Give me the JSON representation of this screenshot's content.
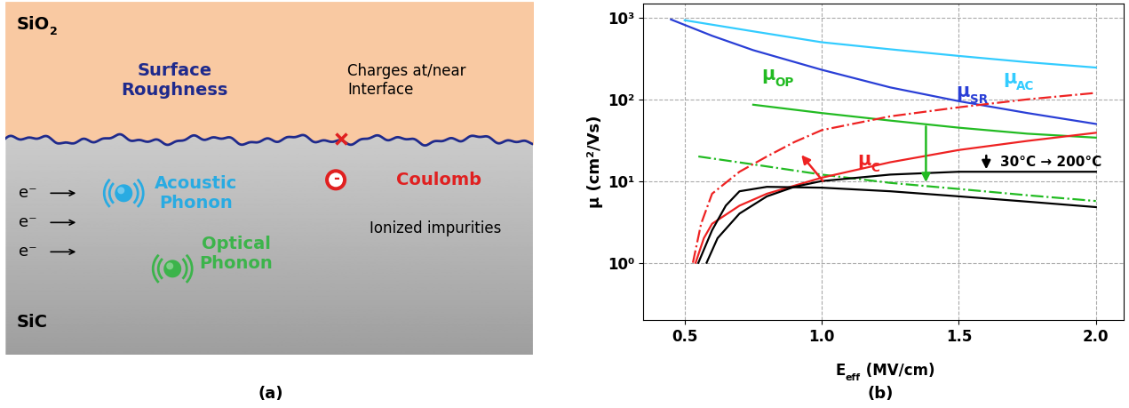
{
  "panel_labels": [
    "(a)",
    "(b)"
  ],
  "diagram": {
    "oxide_label": {
      "text": "SiO",
      "sub": "2"
    },
    "substrate_label": "SiC",
    "roughness_label": {
      "text": "Surface\nRoughness",
      "color": "#1f2a8c"
    },
    "charges_label": "Charges at/near\nInterface",
    "coulomb_label": {
      "text": "Coulomb",
      "color": "#e02020"
    },
    "impurities_label": "Ionized impurities",
    "acoustic_label": {
      "text": "Acoustic\nPhonon",
      "color": "#29abe2"
    },
    "optical_label": {
      "text": "Optical\nPhonon",
      "color": "#3cb44b"
    },
    "electrons": [
      "e⁻",
      "e⁻",
      "e⁻"
    ],
    "ion_symbol": "-"
  },
  "chart_data": {
    "type": "line",
    "xlabel": {
      "text": "E",
      "sub": "eff",
      "rest": " (MV/cm)"
    },
    "ylabel": "μ (cm²/Vs)",
    "log": "y",
    "grid": true,
    "xlim": [
      0.35,
      2.1
    ],
    "xticks": [
      0.5,
      1.0,
      1.5,
      2.0
    ],
    "ylim": [
      0.2,
      1500
    ],
    "yticks": [
      {
        "value": 1,
        "label": "10⁰"
      },
      {
        "value": 10,
        "label": "10¹"
      },
      {
        "value": 100,
        "label": "10²"
      },
      {
        "value": 1000,
        "label": "10³"
      }
    ],
    "series": [
      {
        "color": "#33ccff",
        "line_style": "solid",
        "x": [
          0.5,
          0.75,
          1.0,
          1.25,
          1.5,
          1.75,
          2.0
        ],
        "values": [
          930,
          680,
          500,
          410,
          340,
          285,
          245
        ]
      },
      {
        "color": "#2a3fd6",
        "line_style": "solid",
        "x": [
          0.45,
          0.6,
          0.75,
          1.0,
          1.25,
          1.5,
          1.75,
          2.0
        ],
        "values": [
          950,
          600,
          400,
          230,
          140,
          95,
          68,
          50
        ]
      },
      {
        "color": "#22bb22",
        "line_style": "solid",
        "x": [
          0.75,
          1.0,
          1.25,
          1.5,
          1.75,
          2.0
        ],
        "values": [
          86,
          68,
          55,
          45,
          38,
          34
        ]
      },
      {
        "color": "#22bb22",
        "line_style": "dashdot",
        "x": [
          0.55,
          0.75,
          1.0,
          1.25,
          1.5,
          1.75,
          2.0
        ],
        "values": [
          20,
          16,
          12,
          9.5,
          8,
          6.7,
          5.7
        ]
      },
      {
        "color": "#ee2222",
        "line_style": "solid",
        "x": [
          0.54,
          0.57,
          0.6,
          0.7,
          0.8,
          1.0,
          1.25,
          1.5,
          1.75,
          2.0
        ],
        "values": [
          1,
          2,
          3,
          5,
          7,
          11,
          17,
          24,
          31,
          39
        ]
      },
      {
        "color": "#ee2222",
        "line_style": "dashdot",
        "x": [
          0.53,
          0.56,
          0.6,
          0.7,
          0.8,
          0.9,
          1.0,
          1.25,
          1.5,
          1.75,
          2.0
        ],
        "values": [
          1,
          3,
          7,
          13,
          20,
          30,
          42,
          62,
          80,
          100,
          120
        ]
      },
      {
        "color": "#000000",
        "line_style": "solid",
        "x": [
          0.58,
          0.62,
          0.7,
          0.8,
          0.9,
          1.0,
          1.25,
          1.5,
          1.75,
          2.0
        ],
        "values": [
          1,
          2,
          4,
          6.5,
          8.5,
          10,
          12,
          13,
          13,
          13
        ]
      },
      {
        "color": "#000000",
        "line_style": "solid",
        "x": [
          0.55,
          0.6,
          0.65,
          0.7,
          0.8,
          1.0,
          1.25,
          1.5,
          1.75,
          2.0
        ],
        "values": [
          1,
          2.5,
          5,
          7.5,
          8.5,
          8.3,
          7.5,
          6.5,
          5.6,
          4.8
        ]
      }
    ],
    "annotations": [
      {
        "text": "μ",
        "sub": "AC",
        "x": 1.66,
        "y": 180,
        "color": "#33ccff"
      },
      {
        "text": "μ",
        "sub": "SR",
        "x": 1.49,
        "y": 125,
        "color": "#2a3fd6"
      },
      {
        "text": "μ",
        "sub": "OP",
        "x": 0.78,
        "y": 200,
        "color": "#22bb22"
      },
      {
        "text": "μ",
        "sub": "C",
        "x": 1.13,
        "y": 18,
        "color": "#ee2222"
      },
      {
        "text": "30°C → 200°C",
        "x": 1.65,
        "y": 16.8,
        "color": "#000000"
      }
    ],
    "arrows": [
      {
        "from": [
          1.01,
          9.5
        ],
        "to": [
          0.92,
          22
        ],
        "color": "#ee2222"
      },
      {
        "from": [
          1.38,
          50
        ],
        "to": [
          1.38,
          9
        ],
        "color": "#22bb22"
      },
      {
        "from": [
          1.6,
          22
        ],
        "to": [
          1.6,
          13
        ],
        "color": "#000000"
      }
    ]
  }
}
